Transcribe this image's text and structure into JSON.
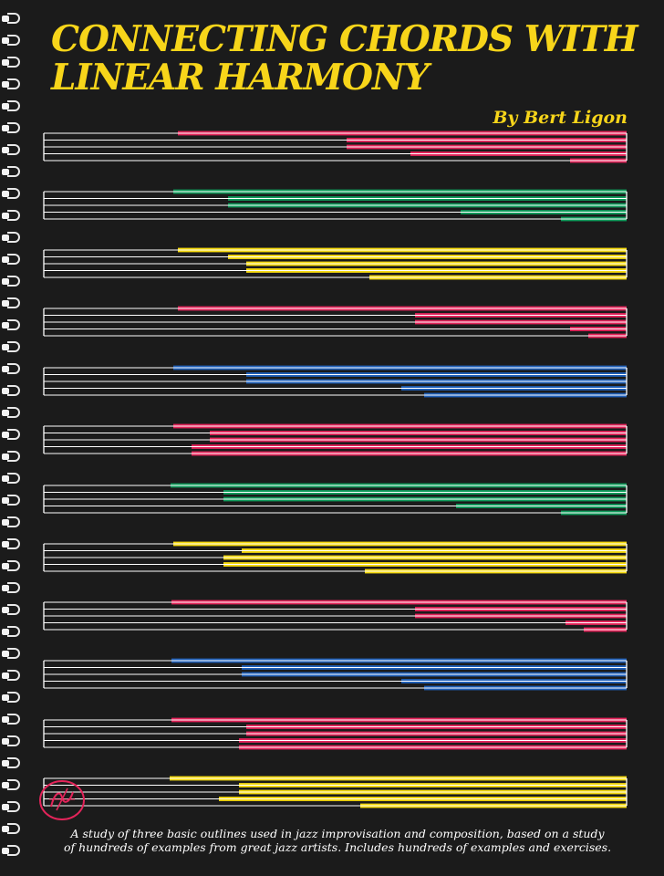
{
  "cover": {
    "title": "CONNECTING CHORDS WITH LINEAR HARMONY",
    "title_line1": "CONNECTING CHORDS WITH",
    "title_line2": "LINEAR HARMONY",
    "author": "By Bert Ligon",
    "blurb_line1": "A study of three basic outlines used in jazz improvisation and composition, based on a study",
    "blurb_line2": "of hundreds of examples from great jazz artists. Includes hundreds of examples and exercises.",
    "logo_icon": "publisher-logo-icon",
    "spiral_icon": "spiral-binding-icon"
  },
  "colors": {
    "background": "#1b1b1b",
    "title": "#f7d51a",
    "staff_line": "#ffffff",
    "red": "#e3245a",
    "green": "#0f9a5a",
    "yellow": "#f5d90f",
    "blue": "#1f5fb8"
  },
  "staves": [
    {
      "color": "red"
    },
    {
      "color": "green"
    },
    {
      "color": "yellow"
    },
    {
      "color": "red"
    },
    {
      "color": "blue"
    },
    {
      "color": "red"
    },
    {
      "color": "green"
    },
    {
      "color": "yellow"
    },
    {
      "color": "red"
    },
    {
      "color": "blue"
    },
    {
      "color": "red"
    },
    {
      "color": "yellow"
    }
  ]
}
